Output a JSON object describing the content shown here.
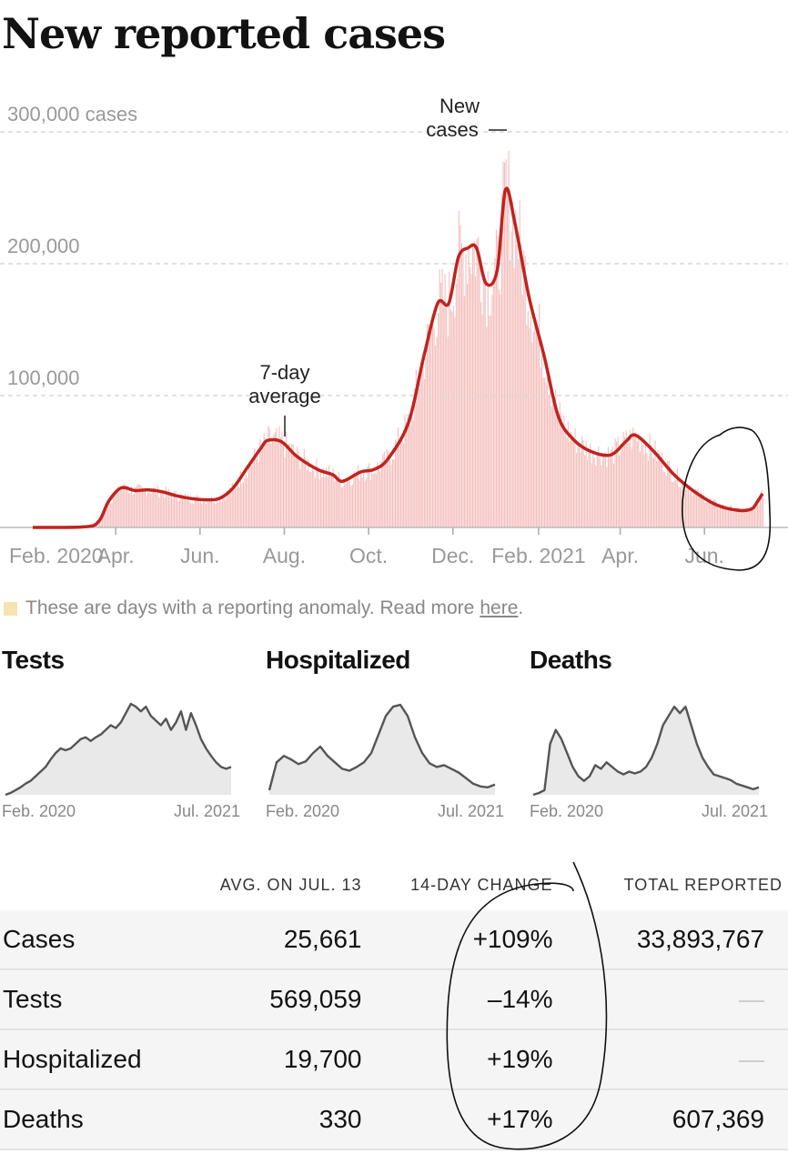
{
  "title": "New reported cases",
  "chart_data": {
    "type": "bar",
    "ylabel": "cases",
    "ylim": [
      0,
      300000
    ],
    "y_ticks": [
      "300,000 cases",
      "200,000",
      "100,000"
    ],
    "x_ticks": [
      "Feb. 2020",
      "Apr.",
      "Jun.",
      "Aug.",
      "Oct.",
      "Dec.",
      "Feb. 2021",
      "Apr.",
      "Jun."
    ],
    "annotations": {
      "bars": "New cases",
      "line_line1": "7-day",
      "line_line2": "average"
    },
    "series": [
      {
        "name": "7-day average",
        "points": [
          [
            "2020-02-01",
            0
          ],
          [
            "2020-03-10",
            500
          ],
          [
            "2020-03-20",
            5000
          ],
          [
            "2020-03-27",
            20000
          ],
          [
            "2020-04-05",
            30000
          ],
          [
            "2020-04-15",
            28000
          ],
          [
            "2020-04-25",
            28500
          ],
          [
            "2020-05-05",
            27000
          ],
          [
            "2020-05-15",
            24000
          ],
          [
            "2020-05-25",
            22000
          ],
          [
            "2020-06-05",
            21000
          ],
          [
            "2020-06-15",
            22000
          ],
          [
            "2020-06-25",
            30000
          ],
          [
            "2020-07-05",
            45000
          ],
          [
            "2020-07-15",
            60000
          ],
          [
            "2020-07-20",
            66000
          ],
          [
            "2020-07-30",
            65000
          ],
          [
            "2020-08-10",
            54000
          ],
          [
            "2020-08-25",
            44000
          ],
          [
            "2020-09-05",
            40000
          ],
          [
            "2020-09-12",
            35000
          ],
          [
            "2020-09-25",
            42000
          ],
          [
            "2020-10-05",
            44000
          ],
          [
            "2020-10-15",
            52000
          ],
          [
            "2020-10-30",
            80000
          ],
          [
            "2020-11-10",
            130000
          ],
          [
            "2020-11-20",
            170000
          ],
          [
            "2020-11-28",
            170000
          ],
          [
            "2020-12-05",
            205000
          ],
          [
            "2020-12-12",
            212000
          ],
          [
            "2020-12-18",
            212000
          ],
          [
            "2020-12-25",
            185000
          ],
          [
            "2021-01-02",
            195000
          ],
          [
            "2021-01-08",
            256000
          ],
          [
            "2021-01-15",
            230000
          ],
          [
            "2021-01-25",
            175000
          ],
          [
            "2021-02-05",
            130000
          ],
          [
            "2021-02-15",
            85000
          ],
          [
            "2021-02-25",
            68000
          ],
          [
            "2021-03-10",
            58000
          ],
          [
            "2021-03-25",
            55000
          ],
          [
            "2021-04-05",
            65000
          ],
          [
            "2021-04-12",
            70000
          ],
          [
            "2021-04-25",
            58000
          ],
          [
            "2021-05-10",
            40000
          ],
          [
            "2021-05-25",
            27000
          ],
          [
            "2021-06-10",
            17000
          ],
          [
            "2021-06-25",
            13000
          ],
          [
            "2021-07-05",
            14000
          ],
          [
            "2021-07-09",
            19000
          ],
          [
            "2021-07-13",
            25661
          ]
        ]
      }
    ],
    "note": {
      "text": "These are days with a reporting anomaly. Read more",
      "link": "here",
      "end": "."
    },
    "colors": {
      "line": "#c0231e",
      "bars": "#f2b4b1",
      "anomaly": "#f7e3b0",
      "grid": "#dddddd"
    }
  },
  "minis": [
    {
      "title": "Tests",
      "tick_start": "Feb. 2020",
      "tick_end": "Jul. 2021",
      "shape": [
        0,
        0.02,
        0.05,
        0.08,
        0.12,
        0.15,
        0.2,
        0.25,
        0.3,
        0.38,
        0.45,
        0.5,
        0.48,
        0.5,
        0.55,
        0.6,
        0.62,
        0.58,
        0.62,
        0.65,
        0.7,
        0.75,
        0.72,
        0.78,
        0.88,
        0.98,
        0.95,
        0.9,
        0.95,
        0.85,
        0.8,
        0.75,
        0.82,
        0.7,
        0.78,
        0.9,
        0.7,
        0.88,
        0.75,
        0.6,
        0.5,
        0.42,
        0.35,
        0.3,
        0.28,
        0.3
      ]
    },
    {
      "title": "Hospitalized",
      "tick_start": "Feb. 2020",
      "tick_end": "Jul. 2021",
      "shape": [
        0.05,
        0.35,
        0.42,
        0.38,
        0.33,
        0.36,
        0.45,
        0.52,
        0.42,
        0.35,
        0.28,
        0.26,
        0.3,
        0.35,
        0.45,
        0.65,
        0.85,
        0.95,
        0.97,
        0.85,
        0.62,
        0.45,
        0.34,
        0.3,
        0.32,
        0.28,
        0.24,
        0.18,
        0.12,
        0.09,
        0.08,
        0.11
      ]
    },
    {
      "title": "Deaths",
      "tick_start": "Feb. 2020",
      "tick_end": "Jul. 2021",
      "shape": [
        0,
        0.02,
        0.05,
        0.55,
        0.7,
        0.6,
        0.45,
        0.3,
        0.2,
        0.15,
        0.2,
        0.32,
        0.28,
        0.35,
        0.3,
        0.25,
        0.22,
        0.25,
        0.23,
        0.25,
        0.3,
        0.4,
        0.55,
        0.75,
        0.85,
        0.95,
        0.88,
        0.95,
        0.75,
        0.55,
        0.4,
        0.3,
        0.22,
        0.2,
        0.18,
        0.16,
        0.12,
        0.1,
        0.08,
        0.06,
        0.08
      ]
    }
  ],
  "table": {
    "headers": [
      "AVG. ON JUL. 13",
      "14-DAY CHANGE",
      "TOTAL REPORTED"
    ],
    "rows": [
      {
        "name": "Cases",
        "avg": "25,661",
        "change": "+109%",
        "total": "33,893,767"
      },
      {
        "name": "Tests",
        "avg": "569,059",
        "change": "–14%",
        "total": "—"
      },
      {
        "name": "Hospitalized",
        "avg": "19,700",
        "change": "+19%",
        "total": "—"
      },
      {
        "name": "Deaths",
        "avg": "330",
        "change": "+17%",
        "total": "607,369"
      }
    ]
  }
}
